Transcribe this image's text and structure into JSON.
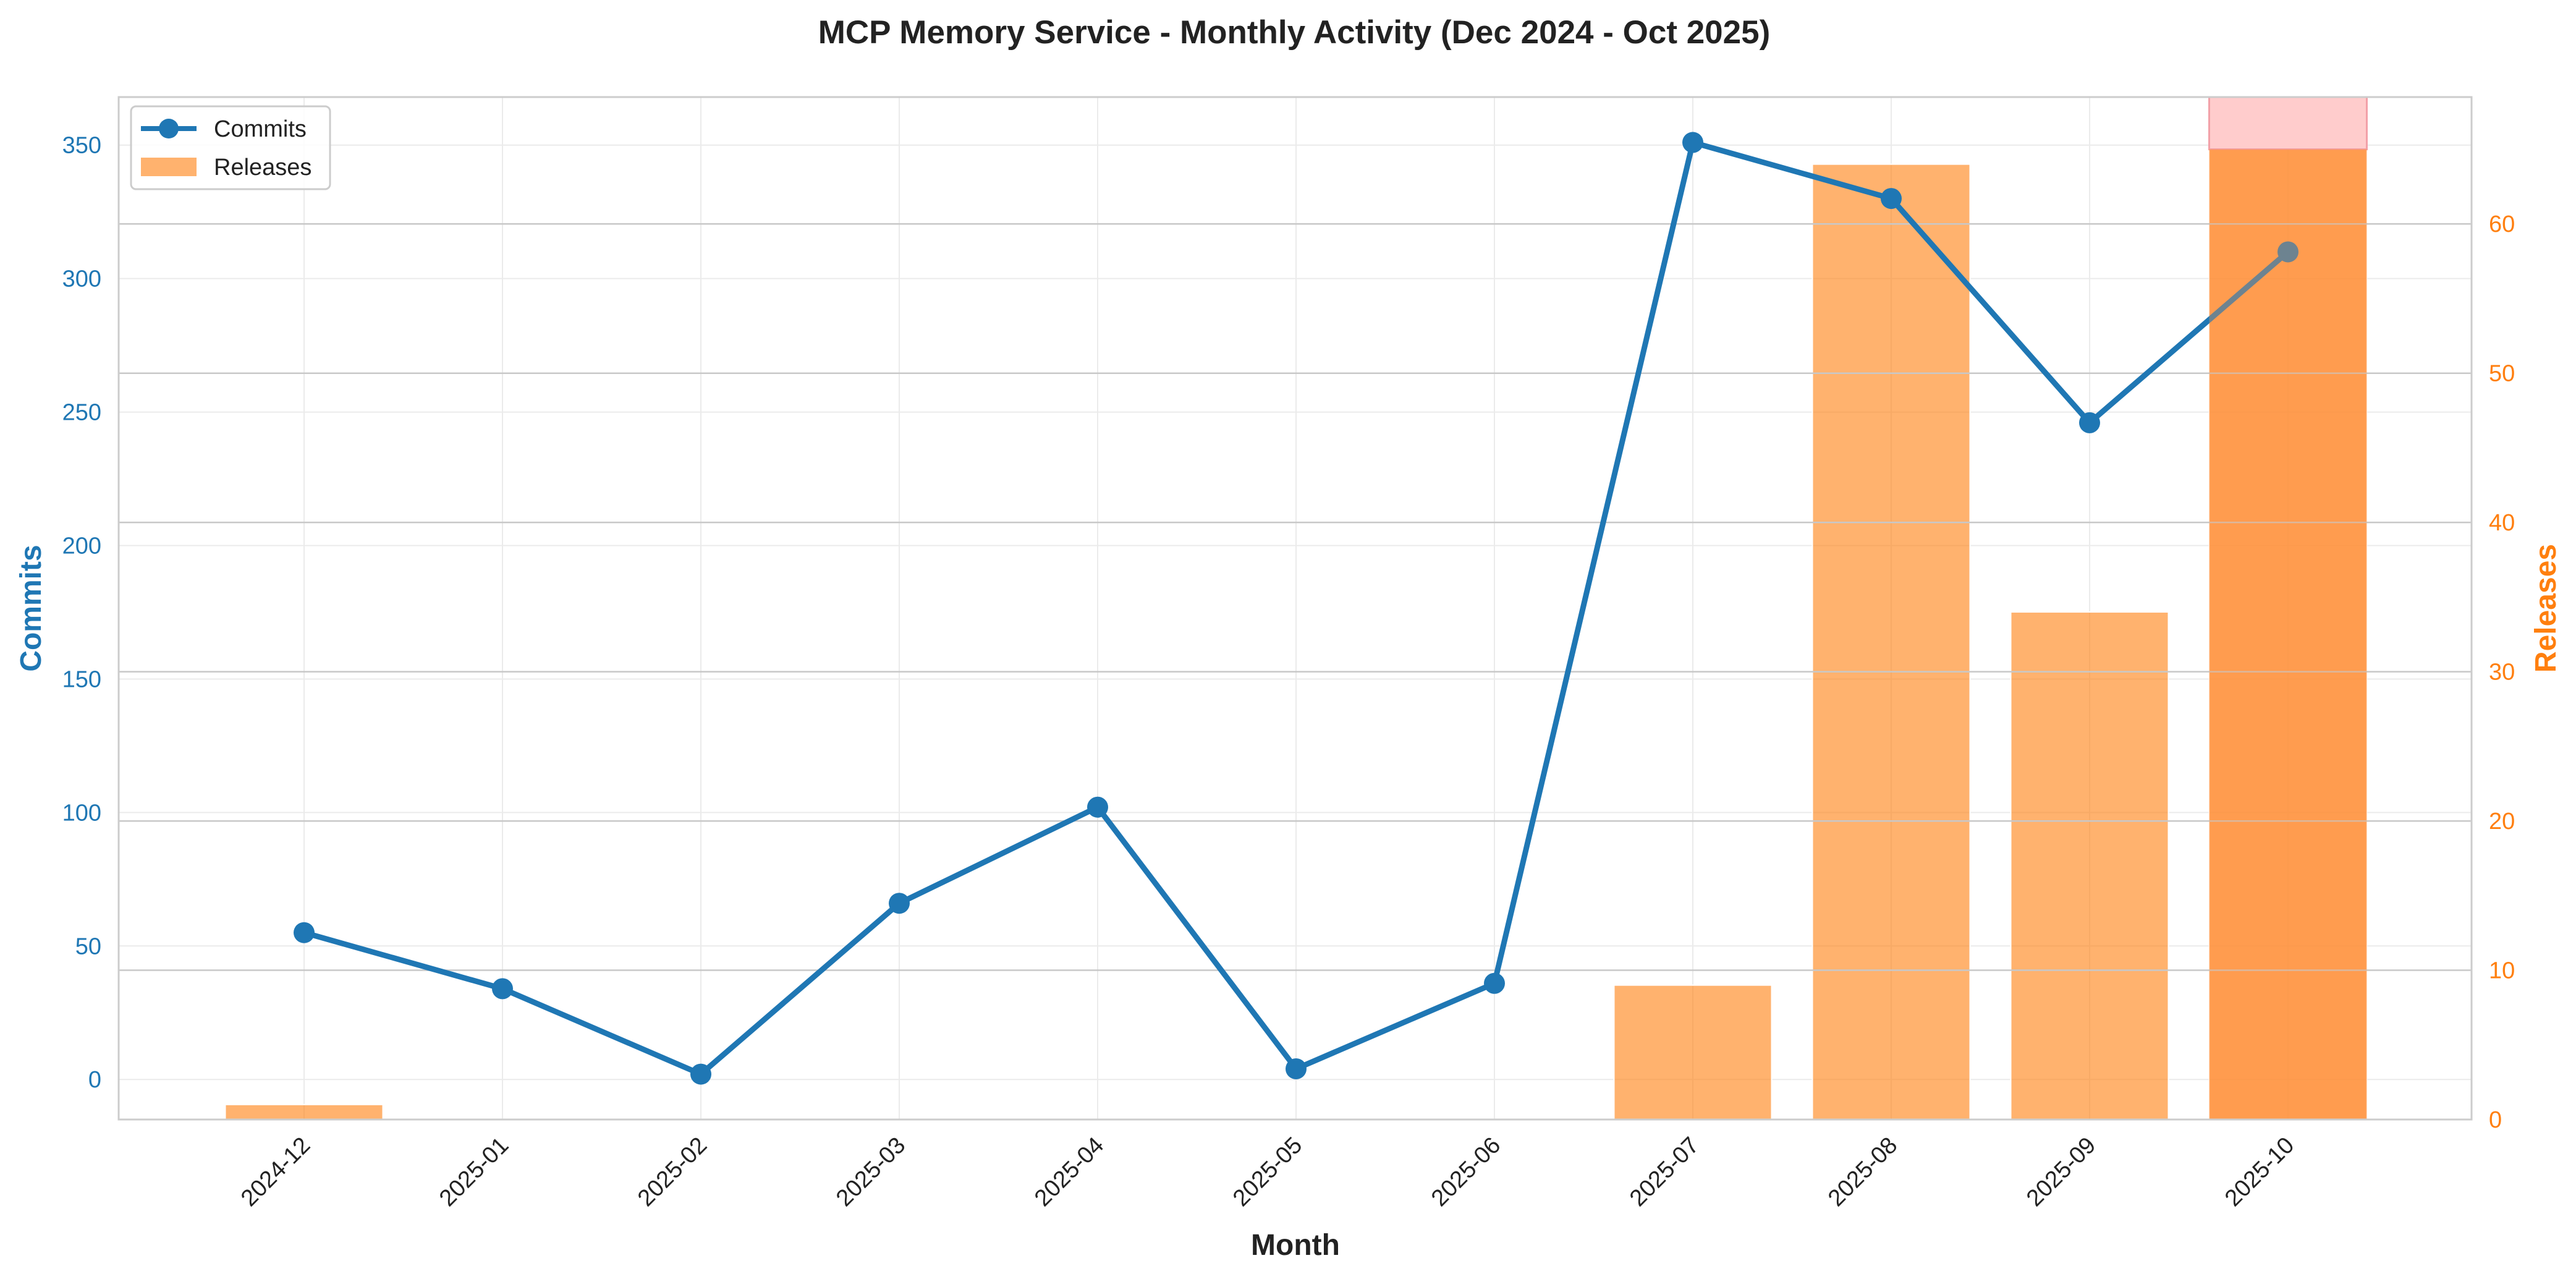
{
  "chart_data": {
    "type": "bar+line",
    "title": "MCP Memory Service - Monthly Activity (Dec 2024 - Oct 2025)",
    "xlabel": "Month",
    "categories": [
      "2024-12",
      "2025-01",
      "2025-02",
      "2025-03",
      "2025-04",
      "2025-05",
      "2025-06",
      "2025-07",
      "2025-08",
      "2025-09",
      "2025-10"
    ],
    "series": [
      {
        "name": "Commits",
        "type": "line",
        "axis": "left",
        "color": "#1f77b4",
        "values": [
          55,
          34,
          2,
          66,
          102,
          4,
          36,
          351,
          330,
          246,
          310
        ]
      },
      {
        "name": "Releases",
        "type": "bar",
        "axis": "right",
        "color": "#ff7f0e",
        "values": [
          1,
          0,
          0,
          0,
          0,
          0,
          0,
          9,
          64,
          34,
          65
        ]
      }
    ],
    "y_left": {
      "label": "Commits",
      "range": [
        -15,
        368
      ],
      "ticks": [
        0,
        50,
        100,
        150,
        200,
        250,
        300,
        350
      ],
      "color": "#1f77b4"
    },
    "y_right": {
      "label": "Releases",
      "range": [
        0,
        68.5
      ],
      "ticks": [
        0,
        10,
        20,
        30,
        40,
        50,
        60
      ],
      "color": "#ff7f0e"
    },
    "highlight": {
      "category": "2025-10",
      "color": "#ffcccc"
    },
    "grid": true,
    "legend": "top-left"
  }
}
